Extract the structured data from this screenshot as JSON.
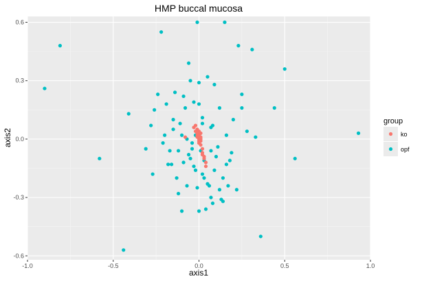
{
  "chart_data": {
    "type": "scatter",
    "title": "HMP buccal mucosa",
    "xlabel": "axis1",
    "ylabel": "axis2",
    "xlim": [
      -1.0,
      1.0
    ],
    "ylim": [
      -0.62,
      0.63
    ],
    "x_ticks": [
      -1.0,
      -0.5,
      0.0,
      0.5,
      1.0
    ],
    "x_tick_labels": [
      "-1.0",
      "-0.5",
      "0.0",
      "0.5",
      "1.0"
    ],
    "y_ticks": [
      -0.6,
      -0.3,
      0.0,
      0.3,
      0.6
    ],
    "y_tick_labels": [
      "-0.6",
      "-0.3",
      "0.0",
      "0.3",
      "0.6"
    ],
    "grid": true,
    "legend": {
      "title": "group",
      "position": "right"
    },
    "series": [
      {
        "name": "ko",
        "color": "#F8766D",
        "points": [
          [
            -0.02,
            0.07
          ],
          [
            -0.01,
            0.05
          ],
          [
            -0.02,
            0.04
          ],
          [
            0.0,
            0.04
          ],
          [
            -0.01,
            0.03
          ],
          [
            0.01,
            0.03
          ],
          [
            -0.01,
            0.02
          ],
          [
            0.0,
            0.02
          ],
          [
            0.01,
            0.01
          ],
          [
            0.0,
            0.0
          ],
          [
            0.01,
            -0.01
          ],
          [
            0.0,
            -0.02
          ],
          [
            0.01,
            -0.03
          ],
          [
            0.02,
            -0.05
          ],
          [
            0.02,
            -0.07
          ],
          [
            0.02,
            -0.08
          ],
          [
            0.03,
            -0.09
          ],
          [
            0.03,
            -0.1
          ],
          [
            0.04,
            -0.12
          ],
          [
            0.04,
            -0.14
          ],
          [
            -0.03,
            0.06
          ],
          [
            -0.01,
            0.01
          ],
          [
            -0.08,
            0.01
          ],
          [
            0.01,
            0.0
          ],
          [
            0.0,
            -0.01
          ]
        ]
      },
      {
        "name": "opf",
        "color": "#00BFC4",
        "points": [
          [
            -0.81,
            0.48
          ],
          [
            -0.9,
            0.26
          ],
          [
            -0.58,
            -0.1
          ],
          [
            -0.44,
            -0.57
          ],
          [
            -0.41,
            0.13
          ],
          [
            -0.31,
            -0.05
          ],
          [
            -0.28,
            0.07
          ],
          [
            -0.27,
            -0.18
          ],
          [
            -0.26,
            0.15
          ],
          [
            -0.24,
            0.23
          ],
          [
            -0.22,
            0.55
          ],
          [
            -0.21,
            -0.02
          ],
          [
            -0.2,
            0.02
          ],
          [
            -0.19,
            0.18
          ],
          [
            -0.18,
            -0.13
          ],
          [
            -0.17,
            -0.06
          ],
          [
            -0.16,
            -0.13
          ],
          [
            -0.15,
            0.1
          ],
          [
            -0.14,
            0.24
          ],
          [
            -0.13,
            -0.2
          ],
          [
            -0.12,
            -0.28
          ],
          [
            -0.12,
            -0.06
          ],
          [
            -0.11,
            0.08
          ],
          [
            -0.1,
            0.02
          ],
          [
            -0.1,
            -0.37
          ],
          [
            -0.09,
            0.22
          ],
          [
            -0.09,
            -0.12
          ],
          [
            -0.08,
            0.16
          ],
          [
            -0.07,
            -0.24
          ],
          [
            -0.07,
            0.0
          ],
          [
            -0.06,
            -0.08
          ],
          [
            -0.06,
            0.39
          ],
          [
            -0.05,
            0.3
          ],
          [
            -0.05,
            -0.1
          ],
          [
            -0.04,
            -0.05
          ],
          [
            -0.03,
            -0.14
          ],
          [
            -0.03,
            0.19
          ],
          [
            -0.02,
            0.02
          ],
          [
            -0.02,
            -0.16
          ],
          [
            -0.01,
            -0.25
          ],
          [
            -0.01,
            0.6
          ],
          [
            0.0,
            -0.37
          ],
          [
            0.0,
            0.29
          ],
          [
            0.01,
            -0.06
          ],
          [
            0.01,
            0.0
          ],
          [
            0.02,
            -0.18
          ],
          [
            0.02,
            0.08
          ],
          [
            0.03,
            -0.2
          ],
          [
            0.03,
            -0.11
          ],
          [
            0.04,
            -0.36
          ],
          [
            0.05,
            0.32
          ],
          [
            0.05,
            -0.23
          ],
          [
            0.06,
            -0.24
          ],
          [
            0.07,
            -0.06
          ],
          [
            0.07,
            0.06
          ],
          [
            0.07,
            -0.3
          ],
          [
            0.08,
            0.07
          ],
          [
            0.08,
            -0.33
          ],
          [
            0.09,
            0.28
          ],
          [
            0.1,
            -0.09
          ],
          [
            0.11,
            -0.04
          ],
          [
            0.12,
            -0.26
          ],
          [
            0.12,
            0.16
          ],
          [
            0.13,
            -0.31
          ],
          [
            0.14,
            -0.2
          ],
          [
            0.15,
            0.6
          ],
          [
            0.16,
            0.02
          ],
          [
            0.16,
            -0.13
          ],
          [
            0.17,
            -0.24
          ],
          [
            0.18,
            -0.11
          ],
          [
            0.19,
            -0.07
          ],
          [
            0.2,
            0.1
          ],
          [
            0.22,
            -0.26
          ],
          [
            0.23,
            0.48
          ],
          [
            0.25,
            0.23
          ],
          [
            0.25,
            0.16
          ],
          [
            0.28,
            0.04
          ],
          [
            0.31,
            0.46
          ],
          [
            0.33,
            0.01
          ],
          [
            0.36,
            -0.5
          ],
          [
            0.44,
            0.16
          ],
          [
            0.5,
            0.36
          ],
          [
            0.56,
            -0.1
          ],
          [
            0.93,
            0.03
          ],
          [
            0.0,
            0.18
          ],
          [
            -0.04,
            -0.02
          ],
          [
            0.02,
            0.11
          ],
          [
            0.14,
            -0.32
          ],
          [
            -0.15,
            0.05
          ],
          [
            0.09,
            -0.16
          ]
        ]
      }
    ]
  }
}
